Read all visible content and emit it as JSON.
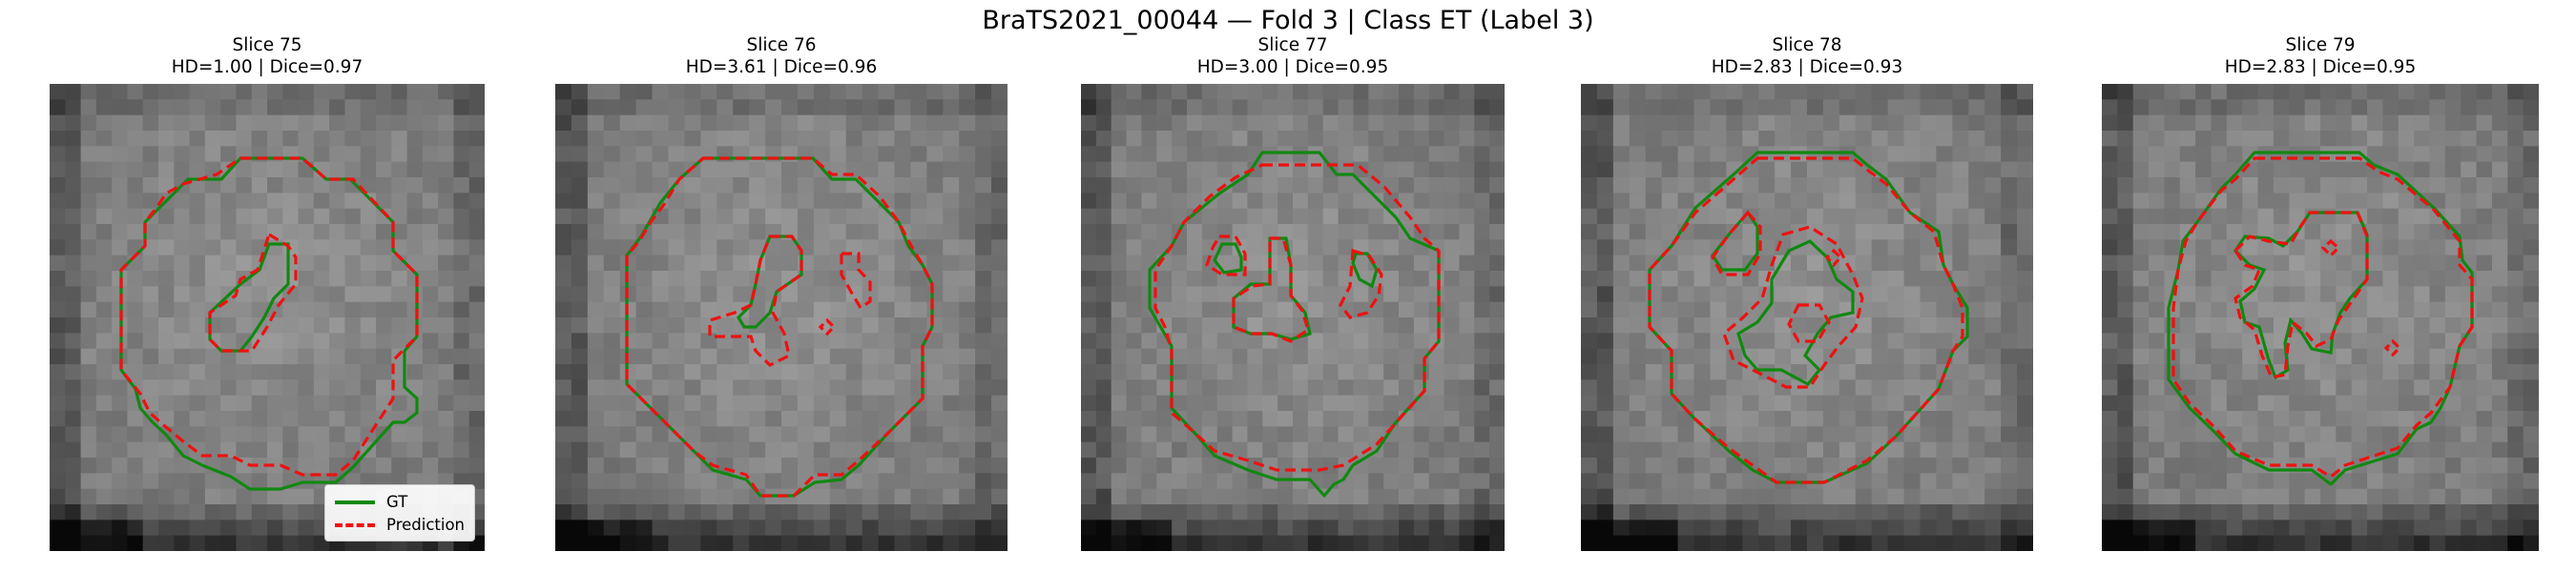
{
  "figure": {
    "title": "BraTS2021_00044 — Fold 3 | Class ET (Label 3)"
  },
  "colors": {
    "ground_truth": "#118811",
    "prediction": "#ee1111"
  },
  "legend": {
    "gt_label": "GT",
    "prediction_label": "Prediction"
  },
  "panels": [
    {
      "slice_label": "Slice 75",
      "metrics_label": "HD=1.00 | Dice=0.97",
      "slice": 75,
      "hd": 1.0,
      "dice": 0.97
    },
    {
      "slice_label": "Slice 76",
      "metrics_label": "HD=3.61 | Dice=0.96",
      "slice": 76,
      "hd": 3.61,
      "dice": 0.96
    },
    {
      "slice_label": "Slice 77",
      "metrics_label": "HD=3.00 | Dice=0.95",
      "slice": 77,
      "hd": 3.0,
      "dice": 0.95
    },
    {
      "slice_label": "Slice 78",
      "metrics_label": "HD=2.83 | Dice=0.93",
      "slice": 78,
      "hd": 2.83,
      "dice": 0.93
    },
    {
      "slice_label": "Slice 79",
      "metrics_label": "HD=2.83 | Dice=0.95",
      "slice": 79,
      "hd": 2.83,
      "dice": 0.95
    }
  ]
}
